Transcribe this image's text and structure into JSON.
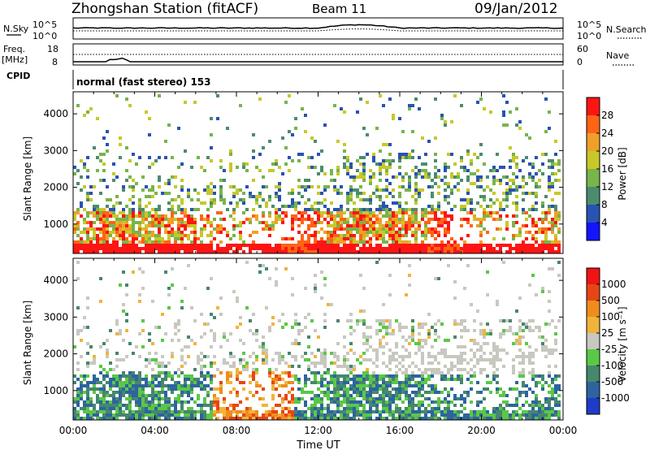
{
  "header": {
    "station": "Zhongshan Station (fitACF)",
    "beam": "Beam 11",
    "date": "09/Jan/2012"
  },
  "top_strip": {
    "nsky_label": "N.Sky",
    "nsky_ticks": [
      "10^5",
      "10^0"
    ],
    "nsearch_label": "N.Search",
    "nsearch_ticks": [
      "10^5",
      "10^0"
    ],
    "freq_label": "Freq.",
    "freq_unit": "[MHz]",
    "freq_ticks": [
      "18",
      "8"
    ],
    "nave_label": "Nave",
    "nave_ticks": [
      "60",
      "0"
    ],
    "cpid_label": "CPID",
    "cpid_text": "normal (fast stereo) 153"
  },
  "chart_data": [
    {
      "type": "heatmap",
      "name": "Power",
      "ylabel": "Slant Range [km]",
      "yticks": [
        "4000",
        "3000",
        "2000",
        "1000"
      ],
      "ytick_values": [
        4000,
        3000,
        2000,
        1000
      ],
      "ylim": [
        200,
        4600
      ],
      "colorbar_label": "Power [dB]",
      "colorbar_ticks": [
        "28",
        "24",
        "20",
        "16",
        "12",
        "8",
        "4"
      ],
      "colorbar_range": [
        0,
        32
      ],
      "colors": [
        "#1414ff",
        "#2952b3",
        "#4b8c6e",
        "#78b44b",
        "#c8c828",
        "#f0a028",
        "#ff6414",
        "#ff1414"
      ],
      "xlim": [
        0,
        24
      ]
    },
    {
      "type": "heatmap",
      "name": "Velocity",
      "ylabel": "Slant Range [km]",
      "yticks": [
        "4000",
        "3000",
        "2000",
        "1000"
      ],
      "ytick_values": [
        4000,
        3000,
        2000,
        1000
      ],
      "ylim": [
        200,
        4600
      ],
      "colorbar_label": "Velocity [m s⁻¹]",
      "colorbar_ticks": [
        "1000",
        "500",
        "100",
        "25",
        "-25",
        "-100",
        "-500",
        "-1000"
      ],
      "colors": [
        "#1e3cc8",
        "#2d64a0",
        "#46876e",
        "#5ac846",
        "#c8c8c0",
        "#f0b43c",
        "#f08c1e",
        "#e64614",
        "#f01414"
      ],
      "xlim": [
        0,
        24
      ],
      "xticks": [
        "00:00",
        "04:00",
        "08:00",
        "12:00",
        "16:00",
        "20:00",
        "00:00"
      ],
      "xlabel": "Time UT"
    }
  ]
}
